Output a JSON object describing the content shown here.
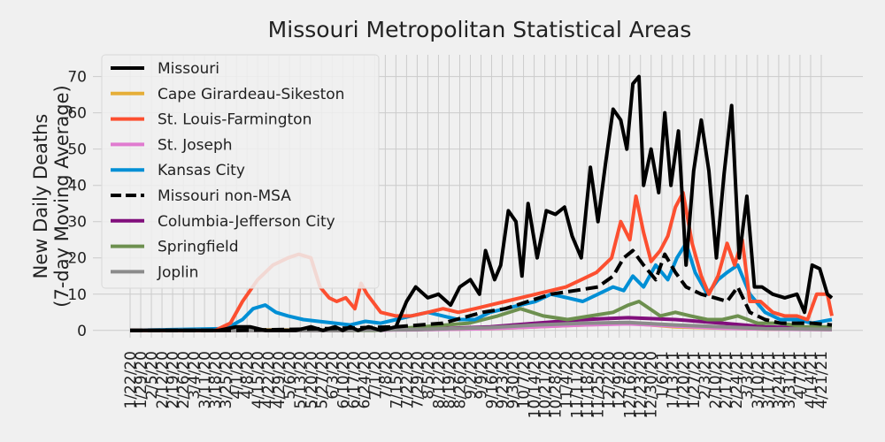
{
  "chart_data": {
    "type": "line",
    "title": "Missouri Metropolitan Statistical Areas",
    "ylabel_line1": "New Daily Deaths",
    "ylabel_line2": "(7-day Moving Average)",
    "xlabel": "",
    "ylim": [
      -2,
      76
    ],
    "yticks": [
      0,
      10,
      20,
      30,
      40,
      50,
      60,
      70
    ],
    "grid": true,
    "legend_position": "top-left",
    "x_start": "2020-01-22",
    "x_end": "2021-04-28",
    "x_tick_labels": [
      "1/22/20",
      "1/29/20",
      "2/5/20",
      "2/12/20",
      "2/19/20",
      "2/26/20",
      "3/4/20",
      "3/11/20",
      "3/18/20",
      "3/25/20",
      "4/1/20",
      "4/8/20",
      "4/15/20",
      "4/22/20",
      "4/29/20",
      "5/6/20",
      "5/13/20",
      "5/20/20",
      "5/27/20",
      "6/3/20",
      "6/10/20",
      "6/17/20",
      "6/24/20",
      "7/1/20",
      "7/8/20",
      "7/15/20",
      "7/22/20",
      "7/29/20",
      "8/5/20",
      "8/12/20",
      "8/19/20",
      "8/26/20",
      "9/2/20",
      "9/9/20",
      "9/16/20",
      "9/23/20",
      "9/30/20",
      "10/7/20",
      "10/14/20",
      "10/21/20",
      "10/28/20",
      "11/4/20",
      "11/11/20",
      "11/18/20",
      "11/25/20",
      "12/2/20",
      "12/9/20",
      "12/16/20",
      "12/23/20",
      "12/30/20",
      "1/6/21",
      "1/13/21",
      "1/20/21",
      "1/27/21",
      "2/3/21",
      "2/10/21",
      "2/17/21",
      "2/24/21",
      "3/3/21",
      "3/10/21",
      "3/17/21",
      "3/24/21",
      "3/31/21",
      "4/7/21",
      "4/14/21",
      "4/21/21"
    ],
    "series": [
      {
        "name": "Missouri",
        "color": "#000000",
        "dashed": false,
        "x": [
          "2020-01-22",
          "2020-03-20",
          "2020-04-01",
          "2020-04-10",
          "2020-04-20",
          "2020-05-01",
          "2020-05-10",
          "2020-05-20",
          "2020-05-28",
          "2020-06-05",
          "2020-06-10",
          "2020-06-15",
          "2020-06-20",
          "2020-06-27",
          "2020-07-05",
          "2020-07-15",
          "2020-07-22",
          "2020-07-28",
          "2020-08-05",
          "2020-08-12",
          "2020-08-20",
          "2020-08-26",
          "2020-09-02",
          "2020-09-08",
          "2020-09-12",
          "2020-09-18",
          "2020-09-22",
          "2020-09-27",
          "2020-10-02",
          "2020-10-06",
          "2020-10-10",
          "2020-10-16",
          "2020-10-22",
          "2020-10-28",
          "2020-11-03",
          "2020-11-08",
          "2020-11-14",
          "2020-11-20",
          "2020-11-25",
          "2020-11-30",
          "2020-12-05",
          "2020-12-10",
          "2020-12-14",
          "2020-12-18",
          "2020-12-22",
          "2020-12-25",
          "2020-12-30",
          "2021-01-04",
          "2021-01-08",
          "2021-01-12",
          "2021-01-17",
          "2021-01-22",
          "2021-01-27",
          "2021-02-01",
          "2021-02-06",
          "2021-02-11",
          "2021-02-16",
          "2021-02-21",
          "2021-02-26",
          "2021-03-03",
          "2021-03-08",
          "2021-03-13",
          "2021-03-20",
          "2021-03-28",
          "2021-04-05",
          "2021-04-10",
          "2021-04-15",
          "2021-04-20",
          "2021-04-25",
          "2021-04-28"
        ],
        "values": [
          0,
          0,
          1,
          1,
          0,
          0,
          0,
          1,
          0,
          1,
          0,
          1,
          0,
          1,
          0,
          1,
          8,
          12,
          9,
          10,
          7,
          12,
          14,
          10,
          22,
          14,
          18,
          33,
          30,
          15,
          35,
          20,
          33,
          32,
          34,
          26,
          20,
          45,
          30,
          46,
          61,
          58,
          50,
          68,
          70,
          40,
          50,
          38,
          60,
          40,
          55,
          18,
          44,
          58,
          44,
          20,
          43,
          62,
          20,
          37,
          12,
          12,
          10,
          9,
          10,
          5,
          18,
          17,
          10,
          9
        ]
      },
      {
        "name": "Cape Girardeau-Sikeston",
        "color": "#e5ae38",
        "dashed": false,
        "x": [
          "2020-01-22",
          "2020-04-01",
          "2020-06-01",
          "2020-08-01",
          "2020-09-15",
          "2020-10-15",
          "2020-11-15",
          "2020-12-15",
          "2021-01-15",
          "2021-02-15",
          "2021-03-15",
          "2021-04-28"
        ],
        "values": [
          0,
          0.2,
          0.1,
          0.3,
          0.5,
          1,
          1.5,
          2,
          1,
          0.6,
          0.4,
          0.3
        ]
      },
      {
        "name": "St. Louis-Farmington",
        "color": "#fc4f30",
        "dashed": false,
        "x": [
          "2020-01-22",
          "2020-03-18",
          "2020-03-28",
          "2020-04-05",
          "2020-04-15",
          "2020-04-25",
          "2020-05-05",
          "2020-05-12",
          "2020-05-20",
          "2020-05-26",
          "2020-06-01",
          "2020-06-06",
          "2020-06-12",
          "2020-06-18",
          "2020-06-22",
          "2020-06-26",
          "2020-07-05",
          "2020-07-15",
          "2020-07-25",
          "2020-08-05",
          "2020-08-15",
          "2020-08-25",
          "2020-09-05",
          "2020-09-15",
          "2020-09-25",
          "2020-10-05",
          "2020-10-15",
          "2020-10-25",
          "2020-11-04",
          "2020-11-14",
          "2020-11-24",
          "2020-12-04",
          "2020-12-10",
          "2020-12-16",
          "2020-12-20",
          "2020-12-25",
          "2020-12-30",
          "2021-01-05",
          "2021-01-10",
          "2021-01-15",
          "2021-01-20",
          "2021-01-26",
          "2021-02-01",
          "2021-02-06",
          "2021-02-12",
          "2021-02-18",
          "2021-02-23",
          "2021-02-28",
          "2021-03-05",
          "2021-03-12",
          "2021-03-20",
          "2021-03-28",
          "2021-04-05",
          "2021-04-12",
          "2021-04-18",
          "2021-04-25",
          "2021-04-28"
        ],
        "values": [
          0,
          0,
          2,
          8,
          14,
          18,
          20,
          21,
          20,
          12,
          9,
          8,
          9,
          6,
          13,
          10,
          5,
          4,
          4,
          5,
          6,
          5,
          6,
          7,
          8,
          9,
          10,
          11,
          12,
          14,
          16,
          20,
          30,
          25,
          37,
          27,
          19,
          22,
          26,
          34,
          38,
          24,
          15,
          10,
          15,
          24,
          18,
          25,
          8,
          8,
          5,
          4,
          4,
          3,
          10,
          10,
          4
        ]
      },
      {
        "name": "St. Joseph",
        "color": "#e07bd0",
        "dashed": false,
        "x": [
          "2020-01-22",
          "2020-06-01",
          "2020-08-01",
          "2020-09-15",
          "2020-10-15",
          "2020-11-15",
          "2020-12-15",
          "2021-01-15",
          "2021-02-15",
          "2021-03-15",
          "2021-04-28"
        ],
        "values": [
          0,
          0,
          0.2,
          0.5,
          1,
          1.5,
          1.8,
          1.2,
          0.6,
          0.4,
          0.2
        ]
      },
      {
        "name": "Kansas City",
        "color": "#008fd5",
        "dashed": false,
        "x": [
          "2020-01-22",
          "2020-03-25",
          "2020-04-05",
          "2020-04-12",
          "2020-04-20",
          "2020-04-27",
          "2020-05-05",
          "2020-05-15",
          "2020-05-25",
          "2020-06-05",
          "2020-06-15",
          "2020-06-25",
          "2020-07-05",
          "2020-07-15",
          "2020-07-25",
          "2020-08-05",
          "2020-08-15",
          "2020-08-25",
          "2020-09-05",
          "2020-09-15",
          "2020-09-25",
          "2020-10-05",
          "2020-10-15",
          "2020-10-25",
          "2020-11-05",
          "2020-11-15",
          "2020-11-25",
          "2020-12-05",
          "2020-12-12",
          "2020-12-18",
          "2020-12-25",
          "2021-01-02",
          "2021-01-10",
          "2021-01-16",
          "2021-01-22",
          "2021-01-28",
          "2021-02-05",
          "2021-02-12",
          "2021-02-18",
          "2021-02-25",
          "2021-03-05",
          "2021-03-15",
          "2021-03-25",
          "2021-04-05",
          "2021-04-15",
          "2021-04-28"
        ],
        "values": [
          0,
          0.5,
          3,
          6,
          7,
          5,
          4,
          3,
          2.5,
          2,
          1.5,
          2.5,
          2,
          3,
          4,
          5,
          4,
          3,
          3,
          5,
          6,
          7,
          8,
          10,
          9,
          8,
          10,
          12,
          11,
          15,
          12,
          18,
          14,
          20,
          24,
          16,
          10,
          14,
          16,
          18,
          10,
          5,
          3,
          3,
          2,
          3
        ]
      },
      {
        "name": "Missouri non-MSA",
        "color": "#000000",
        "dashed": true,
        "x": [
          "2020-01-22",
          "2020-04-01",
          "2020-06-01",
          "2020-07-15",
          "2020-08-15",
          "2020-09-10",
          "2020-09-25",
          "2020-10-10",
          "2020-10-25",
          "2020-11-10",
          "2020-11-25",
          "2020-12-05",
          "2020-12-12",
          "2020-12-18",
          "2020-12-25",
          "2021-01-02",
          "2021-01-08",
          "2021-01-15",
          "2021-01-22",
          "2021-02-01",
          "2021-02-10",
          "2021-02-18",
          "2021-02-25",
          "2021-03-05",
          "2021-03-15",
          "2021-03-25",
          "2021-04-05",
          "2021-04-15",
          "2021-04-28"
        ],
        "values": [
          0,
          0,
          0.5,
          1,
          2,
          5,
          6,
          8,
          10,
          11,
          12,
          15,
          20,
          22,
          18,
          14,
          21,
          16,
          12,
          10,
          9,
          8,
          12,
          5,
          3,
          2,
          2,
          2,
          1.5
        ]
      },
      {
        "name": "Columbia-Jefferson City",
        "color": "#810f7c",
        "dashed": false,
        "x": [
          "2020-01-22",
          "2020-06-01",
          "2020-08-01",
          "2020-09-15",
          "2020-10-15",
          "2020-11-15",
          "2020-12-15",
          "2021-01-15",
          "2021-02-15",
          "2021-03-15",
          "2021-04-28"
        ],
        "values": [
          0,
          0,
          0.3,
          1,
          2,
          3,
          3.5,
          3,
          2,
          1,
          0.5
        ]
      },
      {
        "name": "Springfield",
        "color": "#6d904f",
        "dashed": false,
        "x": [
          "2020-01-22",
          "2020-07-01",
          "2020-08-01",
          "2020-09-01",
          "2020-09-20",
          "2020-10-05",
          "2020-10-20",
          "2020-11-05",
          "2020-11-20",
          "2020-12-05",
          "2020-12-15",
          "2020-12-22",
          "2021-01-05",
          "2021-01-15",
          "2021-01-25",
          "2021-02-05",
          "2021-02-15",
          "2021-02-25",
          "2021-03-10",
          "2021-03-25",
          "2021-04-10",
          "2021-04-28"
        ],
        "values": [
          0,
          0,
          1,
          2,
          4,
          6,
          4,
          3,
          4,
          5,
          7,
          8,
          4,
          5,
          4,
          3,
          3,
          4,
          2,
          2,
          1,
          1
        ]
      },
      {
        "name": "Joplin",
        "color": "#8b8b8b",
        "dashed": false,
        "x": [
          "2020-01-22",
          "2020-06-01",
          "2020-08-01",
          "2020-09-15",
          "2020-10-15",
          "2020-11-15",
          "2020-12-15",
          "2021-01-15",
          "2021-02-15",
          "2021-03-15",
          "2021-04-28"
        ],
        "values": [
          0,
          0,
          0.3,
          0.8,
          1.5,
          2,
          2.2,
          1.5,
          1,
          0.5,
          0.3
        ]
      }
    ]
  }
}
